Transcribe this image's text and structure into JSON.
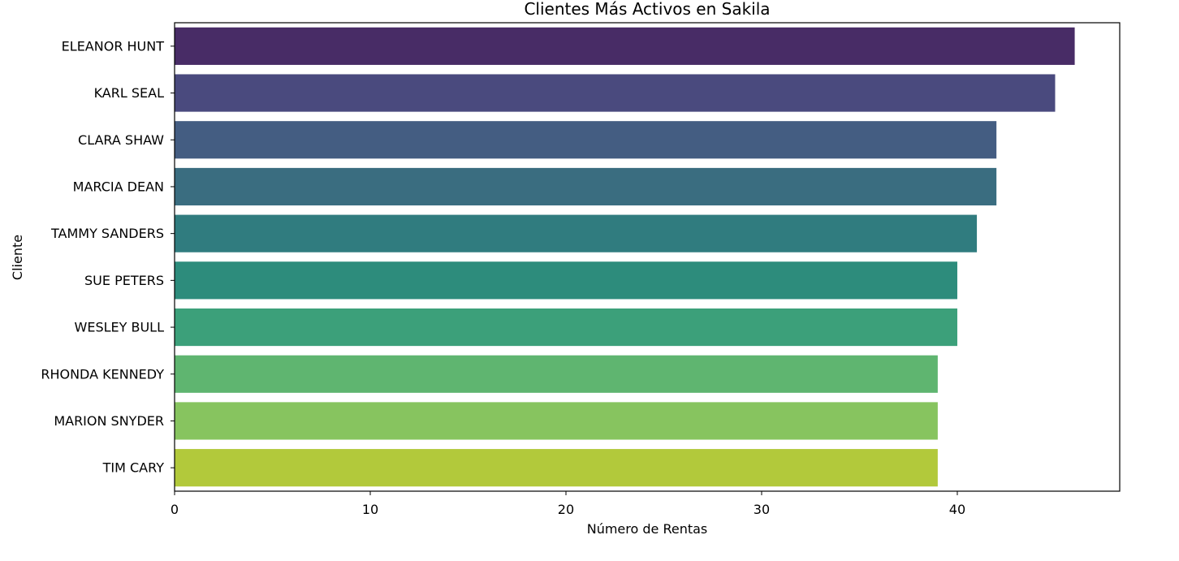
{
  "chart_data": {
    "type": "bar",
    "orientation": "horizontal",
    "title": "Clientes Más Activos en Sakila",
    "xlabel": "Número de Rentas",
    "ylabel": "Cliente",
    "categories": [
      "ELEANOR HUNT",
      "KARL SEAL",
      "CLARA SHAW",
      "MARCIA DEAN",
      "TAMMY SANDERS",
      "SUE PETERS",
      "WESLEY BULL",
      "RHONDA KENNEDY",
      "MARION SNYDER",
      "TIM CARY"
    ],
    "values": [
      46,
      45,
      42,
      42,
      41,
      40,
      40,
      39,
      39,
      39
    ],
    "colors": [
      "#482c66",
      "#4a4a7e",
      "#445d82",
      "#3a6d80",
      "#307c7f",
      "#2d8c7c",
      "#3ca07a",
      "#5fb570",
      "#87c45f",
      "#b2c93b"
    ],
    "xlim": [
      0,
      48.3
    ],
    "xticks": [
      "0",
      "10",
      "20",
      "30",
      "40"
    ],
    "grid": false,
    "legend": "none"
  }
}
